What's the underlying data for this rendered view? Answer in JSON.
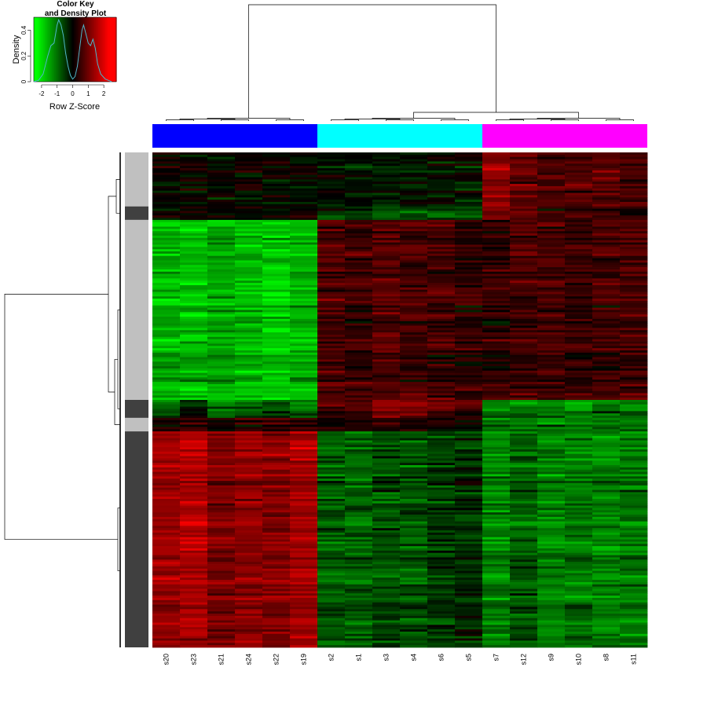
{
  "chart_data": {
    "type": "heatmap",
    "color_key": {
      "title_line1": "Color Key",
      "title_line2": "and Density Plot",
      "xlabel": "Row Z-Score",
      "ylabel": "Density",
      "x_range": [
        -2.5,
        2.8
      ],
      "x_ticks": [
        "-2",
        "-1",
        "0",
        "1",
        "2"
      ],
      "x_tick_values": [
        -2,
        -1,
        0,
        1,
        2
      ],
      "y_range": [
        0,
        0.5
      ],
      "y_ticks": [
        "0",
        "0.2",
        "0.4"
      ],
      "y_tick_values": [
        0,
        0.2,
        0.4
      ],
      "density_curve": [
        [
          -2.5,
          0.0
        ],
        [
          -2.2,
          0.01
        ],
        [
          -1.9,
          0.06
        ],
        [
          -1.6,
          0.2
        ],
        [
          -1.4,
          0.28
        ],
        [
          -1.2,
          0.3
        ],
        [
          -1.0,
          0.44
        ],
        [
          -0.9,
          0.48
        ],
        [
          -0.75,
          0.44
        ],
        [
          -0.6,
          0.36
        ],
        [
          -0.45,
          0.22
        ],
        [
          -0.3,
          0.12
        ],
        [
          -0.15,
          0.05
        ],
        [
          0.0,
          0.02
        ],
        [
          0.15,
          0.04
        ],
        [
          0.3,
          0.12
        ],
        [
          0.45,
          0.26
        ],
        [
          0.6,
          0.4
        ],
        [
          0.7,
          0.44
        ],
        [
          0.85,
          0.37
        ],
        [
          1.0,
          0.3
        ],
        [
          1.15,
          0.28
        ],
        [
          1.3,
          0.33
        ],
        [
          1.45,
          0.26
        ],
        [
          1.6,
          0.14
        ],
        [
          1.8,
          0.06
        ],
        [
          2.1,
          0.02
        ],
        [
          2.5,
          0.0
        ]
      ],
      "density_color": "#4fb6c9",
      "colors": {
        "low": "#00ff00",
        "mid": "#000000",
        "high": "#ff0000"
      }
    },
    "columns": [
      "s20",
      "s23",
      "s21",
      "s24",
      "s22",
      "s19",
      "s2",
      "s1",
      "s3",
      "s4",
      "s6",
      "s5",
      "s7",
      "s12",
      "s9",
      "s10",
      "s8",
      "s11"
    ],
    "column_groups": [
      {
        "color": "#0000ff",
        "count": 6
      },
      {
        "color": "#00ffff",
        "count": 6
      },
      {
        "color": "#ff00ff",
        "count": 6
      }
    ],
    "row_sidebar_colors": {
      "light": "#c0c0c0",
      "dark": "#404040"
    },
    "row_blocks": [
      {
        "fraction": 0.11,
        "pattern": [
          0.0,
          0.0,
          0.0,
          0.0,
          0.0,
          0.0,
          -0.1,
          -0.1,
          -0.2,
          -0.2,
          -0.1,
          -0.1,
          1.2,
          0.9,
          0.7,
          0.7,
          0.8,
          0.6
        ],
        "cluster": "light"
      },
      {
        "fraction": 0.025,
        "pattern": [
          0.2,
          0.1,
          0.2,
          0.1,
          0.2,
          0.3,
          -0.6,
          -0.7,
          -0.9,
          -0.9,
          -0.8,
          -0.8,
          1.3,
          0.8,
          0.6,
          0.6,
          0.5,
          0.5
        ],
        "cluster": "dark"
      },
      {
        "fraction": 0.365,
        "pattern": [
          -1.6,
          -1.7,
          -1.5,
          -1.6,
          -1.8,
          -1.6,
          0.6,
          0.5,
          0.7,
          0.6,
          0.5,
          0.4,
          0.4,
          0.6,
          0.6,
          0.5,
          0.6,
          0.6
        ],
        "cluster": "light"
      },
      {
        "fraction": 0.035,
        "pattern": [
          -0.8,
          -0.2,
          -0.9,
          -0.6,
          -0.5,
          -0.9,
          0.6,
          0.7,
          1.0,
          1.1,
          0.8,
          0.6,
          -1.1,
          -1.0,
          -1.0,
          -1.2,
          -1.0,
          -1.0
        ],
        "cluster": "dark"
      },
      {
        "fraction": 0.025,
        "pattern": [
          0.3,
          0.5,
          0.2,
          0.3,
          0.4,
          0.5,
          0.2,
          0.3,
          0.4,
          0.3,
          0.2,
          0.2,
          -1.0,
          -1.0,
          -1.1,
          -1.1,
          -1.0,
          -1.0
        ],
        "cluster": "light"
      },
      {
        "fraction": 0.44,
        "pattern": [
          1.4,
          1.6,
          1.1,
          1.3,
          1.2,
          1.5,
          -0.8,
          -0.9,
          -0.7,
          -0.8,
          -0.5,
          -0.4,
          -1.2,
          -0.8,
          -1.2,
          -1.1,
          -1.2,
          -1.1
        ],
        "cluster": "dark"
      }
    ]
  }
}
